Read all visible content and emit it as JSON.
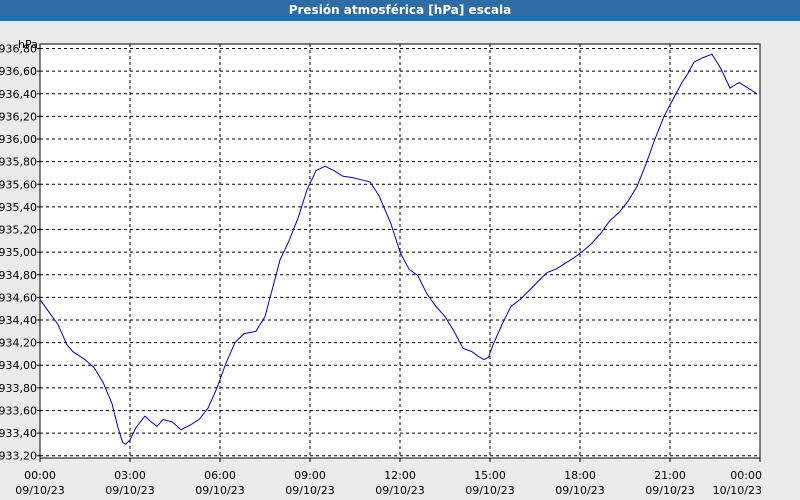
{
  "window": {
    "title": "Presión atmosférica [hPa] escala"
  },
  "colors": {
    "title_bg": "#2e6ca6",
    "background": "#ebebeb",
    "plot_bg": "#ffffff",
    "series": "#0000aa",
    "grid": "#000000"
  },
  "chart_data": {
    "type": "line",
    "title": "Presión atmosférica [hPa] escala",
    "ylabel": "hPa",
    "xlabel": "",
    "ylim": [
      933.18,
      936.84
    ],
    "xlim_hours": [
      0,
      24
    ],
    "grid": true,
    "y_ticks": [
      "933,20",
      "933,40",
      "933,60",
      "933,80",
      "934,00",
      "934,20",
      "934,40",
      "934,60",
      "934,80",
      "935,00",
      "935,20",
      "935,40",
      "935,60",
      "935,80",
      "936,00",
      "936,20",
      "936,40",
      "936,60",
      "936,80"
    ],
    "x_ticks": [
      {
        "time": "00:00",
        "date": "09/10/23"
      },
      {
        "time": "03:00",
        "date": "09/10/23"
      },
      {
        "time": "06:00",
        "date": "09/10/23"
      },
      {
        "time": "09:00",
        "date": "09/10/23"
      },
      {
        "time": "12:00",
        "date": "09/10/23"
      },
      {
        "time": "15:00",
        "date": "09/10/23"
      },
      {
        "time": "18:00",
        "date": "09/10/23"
      },
      {
        "time": "21:00",
        "date": "09/10/23"
      },
      {
        "time": "00:00",
        "date": "10/10/23"
      }
    ],
    "series": [
      {
        "x": [
          0,
          0.3,
          0.6,
          0.9,
          1.1,
          1.5,
          1.8,
          2.1,
          2.4,
          2.6,
          2.75,
          2.85,
          3.0,
          3.2,
          3.5,
          3.7,
          3.9,
          4.1,
          4.4,
          4.7,
          5.0,
          5.3,
          5.6,
          5.9,
          6.2,
          6.5,
          6.8,
          7.2,
          7.5,
          7.8,
          8.0,
          8.3,
          8.6,
          8.9,
          9.2,
          9.5,
          9.8,
          10.1,
          10.4,
          10.7,
          11.0,
          11.3,
          11.7,
          12.0,
          12.3,
          12.6,
          12.9,
          13.2,
          13.5,
          13.8,
          14.1,
          14.4,
          14.6,
          14.8,
          14.95,
          15.1,
          15.4,
          15.7,
          16.0,
          16.3,
          16.6,
          16.9,
          17.2,
          17.5,
          17.8,
          18.1,
          18.4,
          18.7,
          19.0,
          19.3,
          19.6,
          19.9,
          20.2,
          20.5,
          20.8,
          21.1,
          21.4,
          21.6,
          21.8,
          22.1,
          22.4,
          22.7,
          23.0,
          23.3,
          23.6,
          23.9
        ],
        "y": [
          934.58,
          934.47,
          934.36,
          934.18,
          934.12,
          934.05,
          933.98,
          933.85,
          933.66,
          933.45,
          933.32,
          933.3,
          933.34,
          933.45,
          933.55,
          933.5,
          933.46,
          933.52,
          933.5,
          933.43,
          933.47,
          933.52,
          933.62,
          933.8,
          934.02,
          934.2,
          934.28,
          934.3,
          934.43,
          934.73,
          934.93,
          935.1,
          935.3,
          935.55,
          935.72,
          935.76,
          935.72,
          935.67,
          935.66,
          935.64,
          935.62,
          935.5,
          935.25,
          935.0,
          934.85,
          934.79,
          934.63,
          934.52,
          934.43,
          934.3,
          934.15,
          934.12,
          934.08,
          934.05,
          934.07,
          934.18,
          934.36,
          934.52,
          934.58,
          934.66,
          934.74,
          934.82,
          934.85,
          934.9,
          934.95,
          935.01,
          935.08,
          935.17,
          935.28,
          935.35,
          935.45,
          935.58,
          935.78,
          936.0,
          936.2,
          936.35,
          936.5,
          936.58,
          936.68,
          936.72,
          936.75,
          936.62,
          936.45,
          936.5,
          936.45,
          936.4
        ]
      }
    ]
  }
}
